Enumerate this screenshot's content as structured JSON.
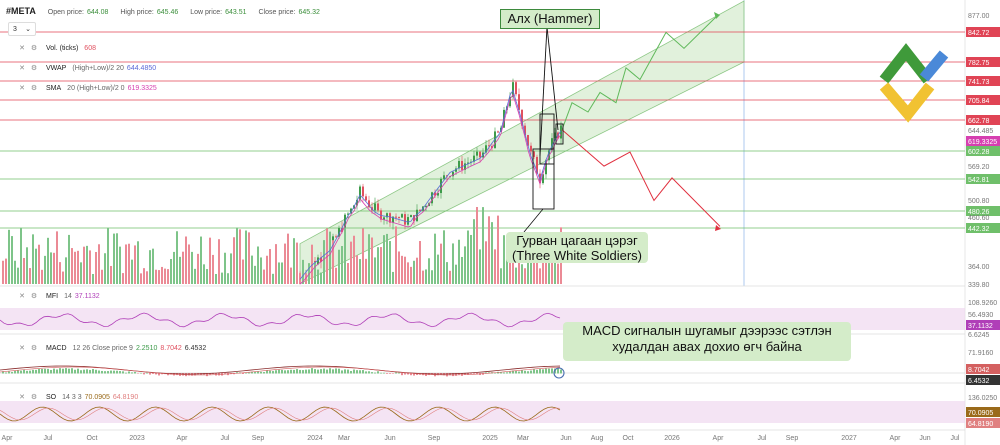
{
  "header": {
    "symbol": "#META",
    "open_label": "Open price:",
    "open_value": "644.08",
    "high_label": "High price:",
    "high_value": "645.46",
    "low_label": "Low price:",
    "low_value": "643.51",
    "close_label": "Close price:",
    "close_value": "645.32"
  },
  "dropdown": {
    "value": "3",
    "arrow": "⌄"
  },
  "indicators": {
    "vol": {
      "name": "Vol. (ticks)",
      "params": "",
      "value": "608"
    },
    "vwap": {
      "name": "VWAP",
      "params": "(High+Low)/2 20",
      "value": "644.4850"
    },
    "sma": {
      "name": "SMA",
      "params": "20 (High+Low)/2 0",
      "value": "619.3325"
    },
    "mfi": {
      "name": "MFI",
      "params": "14",
      "value": "37.1132"
    },
    "macd": {
      "name": "MACD",
      "params": "12 26 Close price 9",
      "v1": "2.2510",
      "v2": "8.7042",
      "v3": "6.4532"
    },
    "so": {
      "name": "SO",
      "params": "14 3 3",
      "v1": "70.0905",
      "v2": "64.8190"
    }
  },
  "annotations": {
    "hammer": "Алх (Hammer)",
    "soldiers_line1": "Гурван цагаан цэрэг",
    "soldiers_line2": "(Three White Soldiers)",
    "macd_line1": "MACD сигналын шугамыг дээрээс сэтлэн",
    "macd_line2": "худалдан авах дохио өгч байна"
  },
  "colors": {
    "up": "#3d9b4a",
    "down": "#e0505f",
    "channel": "#c8e6c0",
    "support": "#6fbf6a",
    "resistance": "#e04455",
    "vwap": "#5b6ad8",
    "sma": "#d63fb0",
    "price": "#3b73c8",
    "forecast_up": "#5fb85a",
    "forecast_down": "#e0303f"
  },
  "chart_data": {
    "type": "candlestick",
    "symbol": "#META",
    "y_axis_ticks": [
      877.0,
      842.72,
      782.75,
      741.73,
      705.84,
      662.78,
      644.485,
      619.3325,
      602.28,
      569.2,
      542.81,
      500.8,
      480.26,
      460.6,
      442.32,
      364.0,
      339.8
    ],
    "price_levels": {
      "resistance": [
        842.72,
        782.75,
        741.73,
        705.84,
        662.78
      ],
      "support": [
        602.28,
        542.81,
        480.26,
        442.32
      ]
    },
    "current": {
      "price": "644.4850",
      "sma": "619.3325"
    },
    "x_axis_ticks": [
      "Apr",
      "Jul",
      "Oct",
      "2023",
      "Apr",
      "Jul",
      "Sep",
      "2024",
      "Mar",
      "Jun",
      "Sep",
      "2025",
      "Mar",
      "Jun",
      "Aug",
      "Oct",
      "2026",
      "Apr",
      "Jul",
      "Sep",
      "2027",
      "Apr",
      "Jun",
      "Jul"
    ],
    "mfi_ticks": [
      "108.9260",
      "56.4930",
      "37.1132",
      "6.6245"
    ],
    "macd_ticks": [
      "71.9160",
      "8.7042",
      "6.4532"
    ],
    "so_ticks": [
      "136.0250",
      "70.0905",
      "64.8190"
    ]
  }
}
